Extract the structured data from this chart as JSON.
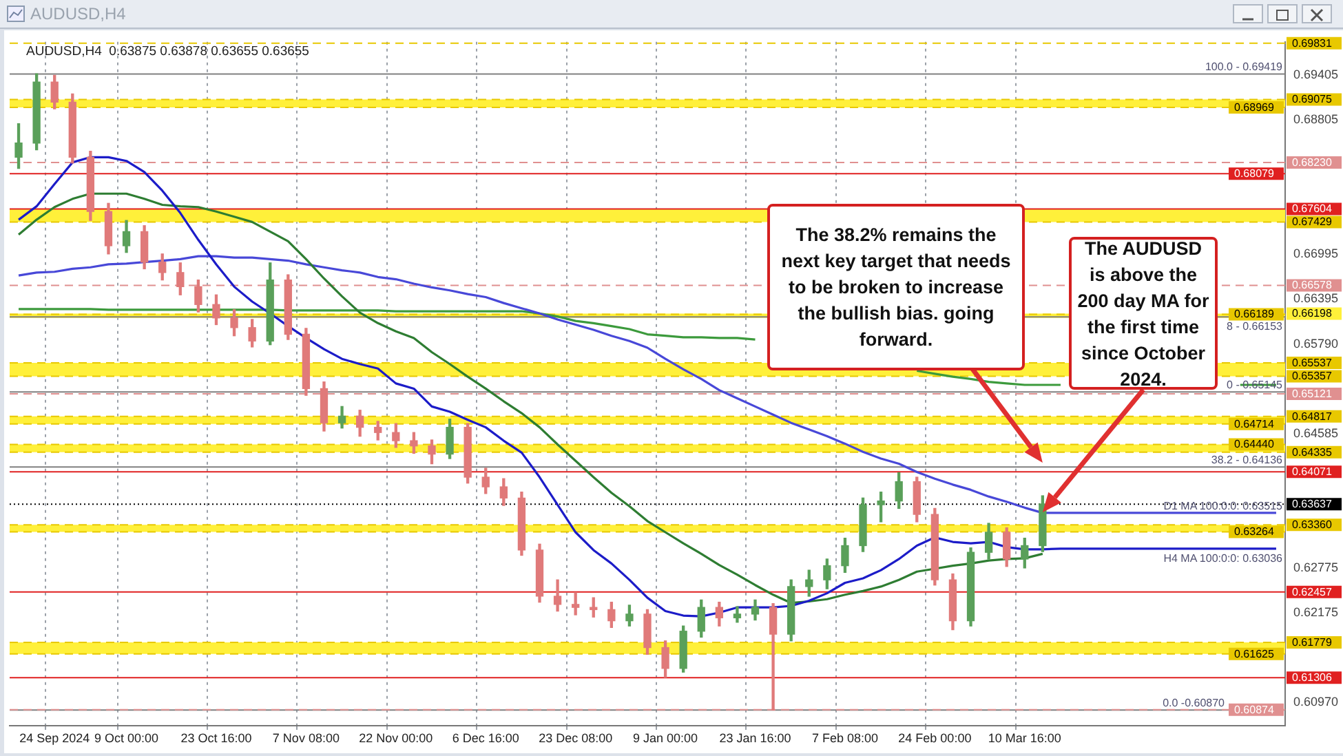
{
  "chart_data": {
    "type": "candlestick",
    "title": "AUDUSD,H4",
    "subtitle": "AUDUSD,H4  0.63875 0.63878 0.63655 0.63655",
    "categories": [
      null,
      null,
      "24 Sep 2024",
      null,
      null,
      null,
      "9 Oct 00:00",
      null,
      null,
      null,
      null,
      "23 Oct 16:00",
      null,
      null,
      null,
      null,
      "7 Nov 08:00",
      null,
      null,
      null,
      null,
      "22 Nov 00:00",
      null,
      null,
      null,
      null,
      "6 Dec 16:00",
      null,
      null,
      null,
      null,
      "23 Dec 08:00",
      null,
      null,
      null,
      null,
      "9 Jan 00:00",
      null,
      null,
      null,
      null,
      "23 Jan 16:00",
      null,
      null,
      null,
      null,
      "7 Feb 08:00",
      null,
      null,
      null,
      null,
      "24 Feb 00:00",
      null,
      null,
      null,
      null,
      "10 Mar 16:00",
      null,
      null,
      null,
      null,
      null,
      null,
      null,
      null,
      null,
      null,
      null,
      null,
      null,
      null
    ],
    "ohlc": [
      [
        0.683,
        0.6875,
        0.6815,
        0.6849
      ],
      [
        0.6849,
        0.6942,
        0.684,
        0.6931
      ],
      [
        0.6931,
        0.694,
        0.6895,
        0.6904
      ],
      [
        0.6904,
        0.6915,
        0.6822,
        0.683
      ],
      [
        0.683,
        0.6838,
        0.6745,
        0.6757
      ],
      [
        0.6757,
        0.6768,
        0.67,
        0.6711
      ],
      [
        0.6711,
        0.6745,
        0.6702,
        0.673
      ],
      [
        0.673,
        0.6738,
        0.668,
        0.6689
      ],
      [
        0.6689,
        0.67,
        0.6665,
        0.6675
      ],
      [
        0.6675,
        0.6688,
        0.6645,
        0.6656
      ],
      [
        0.6656,
        0.6665,
        0.6622,
        0.6632
      ],
      [
        0.6632,
        0.6645,
        0.6605,
        0.6614
      ],
      [
        0.6614,
        0.6625,
        0.659,
        0.6601
      ],
      [
        0.6601,
        0.6612,
        0.6575,
        0.6583
      ],
      [
        0.6583,
        0.6688,
        0.6578,
        0.6665
      ],
      [
        0.6665,
        0.6672,
        0.6585,
        0.6592
      ],
      [
        0.6592,
        0.66,
        0.651,
        0.6519
      ],
      [
        0.6519,
        0.6528,
        0.6462,
        0.6473
      ],
      [
        0.6473,
        0.6495,
        0.6466,
        0.6482
      ],
      [
        0.6482,
        0.649,
        0.6455,
        0.6467
      ],
      [
        0.6467,
        0.6475,
        0.645,
        0.646
      ],
      [
        0.646,
        0.6472,
        0.644,
        0.6449
      ],
      [
        0.6449,
        0.646,
        0.6432,
        0.6442
      ],
      [
        0.6442,
        0.645,
        0.6418,
        0.6431
      ],
      [
        0.6431,
        0.6478,
        0.6425,
        0.6467
      ],
      [
        0.6467,
        0.6472,
        0.6392,
        0.64
      ],
      [
        0.64,
        0.6412,
        0.6378,
        0.6387
      ],
      [
        0.6387,
        0.6398,
        0.6362,
        0.6372
      ],
      [
        0.6372,
        0.638,
        0.6295,
        0.6302
      ],
      [
        0.6302,
        0.631,
        0.6232,
        0.624
      ],
      [
        0.624,
        0.6262,
        0.622,
        0.6229
      ],
      [
        0.6229,
        0.6245,
        0.6215,
        0.6225
      ],
      [
        0.6225,
        0.6238,
        0.6212,
        0.6222
      ],
      [
        0.6222,
        0.6232,
        0.6198,
        0.6207
      ],
      [
        0.6207,
        0.6228,
        0.62,
        0.6216
      ],
      [
        0.6216,
        0.6222,
        0.6162,
        0.6171
      ],
      [
        0.6171,
        0.618,
        0.6131,
        0.6143
      ],
      [
        0.6143,
        0.62,
        0.6138,
        0.6193
      ],
      [
        0.6193,
        0.6235,
        0.6185,
        0.6225
      ],
      [
        0.6225,
        0.6232,
        0.62,
        0.6211
      ],
      [
        0.6211,
        0.6226,
        0.6205,
        0.6216
      ],
      [
        0.6216,
        0.6235,
        0.6208,
        0.6225
      ],
      [
        0.6225,
        0.623,
        0.6087,
        0.6189
      ],
      [
        0.6189,
        0.6262,
        0.618,
        0.6253
      ],
      [
        0.6253,
        0.6275,
        0.624,
        0.6262
      ],
      [
        0.6262,
        0.629,
        0.625,
        0.6281
      ],
      [
        0.6281,
        0.6318,
        0.6272,
        0.6308
      ],
      [
        0.6308,
        0.6372,
        0.63,
        0.6363
      ],
      [
        0.6363,
        0.638,
        0.634,
        0.6368
      ],
      [
        0.6368,
        0.6406,
        0.6358,
        0.6394
      ],
      [
        0.6394,
        0.64,
        0.634,
        0.635
      ],
      [
        0.635,
        0.6358,
        0.6255,
        0.6262
      ],
      [
        0.6262,
        0.627,
        0.6195,
        0.6207
      ],
      [
        0.6207,
        0.6305,
        0.62,
        0.6299
      ],
      [
        0.6299,
        0.6338,
        0.629,
        0.6326
      ],
      [
        0.6326,
        0.6332,
        0.628,
        0.629
      ],
      [
        0.629,
        0.6318,
        0.6278,
        0.6308
      ],
      [
        0.6308,
        0.6375,
        0.63,
        0.6364
      ],
      null,
      null,
      null,
      null,
      null,
      null,
      null,
      null,
      null,
      null,
      null,
      null,
      null
    ],
    "colors": [
      "#5aa05a",
      "#5aa05a",
      "#e07a7a",
      "#e07a7a",
      "#e07a7a",
      "#e07a7a",
      "#5aa05a",
      "#e07a7a",
      "#e07a7a",
      "#e07a7a",
      "#e07a7a",
      "#e07a7a",
      "#e07a7a",
      "#e07a7a",
      "#5aa05a",
      "#e07a7a",
      "#e07a7a",
      "#e07a7a",
      "#5aa05a",
      "#e07a7a",
      "#e07a7a",
      "#e07a7a",
      "#e07a7a",
      "#e07a7a",
      "#5aa05a",
      "#e07a7a",
      "#e07a7a",
      "#e07a7a",
      "#e07a7a",
      "#e07a7a",
      "#e07a7a",
      "#e07a7a",
      "#e07a7a",
      "#e07a7a",
      "#5aa05a",
      "#e07a7a",
      "#e07a7a",
      "#5aa05a",
      "#5aa05a",
      "#e07a7a",
      "#5aa05a",
      "#5aa05a",
      "#e07a7a",
      "#5aa05a",
      "#5aa05a",
      "#5aa05a",
      "#5aa05a",
      "#5aa05a",
      "#5aa05a",
      "#5aa05a",
      "#e07a7a",
      "#e07a7a",
      "#e07a7a",
      "#5aa05a",
      "#5aa05a",
      "#e07a7a",
      "#5aa05a",
      "#5aa05a",
      null,
      null,
      null,
      null,
      null,
      null,
      null,
      null,
      null,
      null,
      null,
      null,
      null
    ],
    "series": [
      {
        "type": "line",
        "color": "#1c1cc8",
        "values": [
          0.6746,
          0.6764,
          0.6794,
          0.6823,
          0.683,
          0.683,
          0.6825,
          0.681,
          0.6785,
          0.6755,
          0.6719,
          0.6686,
          0.6656,
          0.6636,
          0.662,
          0.6603,
          0.6587,
          0.6572,
          0.6559,
          0.6552,
          0.6546,
          0.6526,
          0.6519,
          0.6495,
          0.6488,
          0.6477,
          0.6467,
          0.6449,
          0.6433,
          0.64,
          0.6363,
          0.6326,
          0.6302,
          0.6284,
          0.6262,
          0.6238,
          0.622,
          0.6214,
          0.6213,
          0.6218,
          0.6225,
          0.6225,
          0.6225,
          0.6227,
          0.6234,
          0.6244,
          0.6258,
          0.6264,
          0.6275,
          0.629,
          0.6308,
          0.6319,
          0.6313,
          0.6311,
          0.6313,
          0.6306,
          0.6303,
          0.6303,
          0.6304,
          0.6304,
          0.6304,
          0.6304,
          0.6304,
          0.6304,
          0.6304,
          0.6304,
          0.6304,
          0.6304,
          0.6304,
          0.6304,
          0.6304
        ]
      },
      {
        "type": "line",
        "color": "#2e7d32",
        "values": [
          0.6726,
          0.6746,
          0.6763,
          0.6774,
          0.6781,
          0.6781,
          0.6781,
          0.6774,
          0.6766,
          0.6764,
          0.6763,
          0.6757,
          0.675,
          0.6743,
          0.673,
          0.6717,
          0.6693,
          0.6667,
          0.6643,
          0.6621,
          0.6607,
          0.6596,
          0.6587,
          0.6568,
          0.6552,
          0.6535,
          0.6519,
          0.6502,
          0.6486,
          0.6467,
          0.6444,
          0.6422,
          0.64,
          0.6379,
          0.6361,
          0.6341,
          0.6326,
          0.6311,
          0.6297,
          0.6282,
          0.6269,
          0.6255,
          0.6242,
          0.6231,
          0.6233,
          0.6236,
          0.6242,
          0.6247,
          0.6253,
          0.6262,
          0.6273,
          0.6277,
          0.6281,
          0.6284,
          0.6288,
          0.629,
          0.6291,
          0.6297,
          null,
          null,
          null,
          null,
          null,
          null,
          null,
          null,
          null,
          null,
          null,
          null,
          null
        ]
      },
      {
        "type": "line",
        "color": "#4848d8",
        "values": [
          0.6671,
          0.6675,
          0.6676,
          0.668,
          0.6682,
          0.6686,
          0.6687,
          0.6689,
          0.6691,
          0.6693,
          0.6697,
          0.6697,
          0.6695,
          0.6695,
          0.6693,
          0.6691,
          0.6686,
          0.6682,
          0.6678,
          0.6675,
          0.6669,
          0.6666,
          0.666,
          0.6655,
          0.6651,
          0.6646,
          0.6642,
          0.6634,
          0.6627,
          0.662,
          0.6612,
          0.6605,
          0.6598,
          0.659,
          0.6583,
          0.6574,
          0.6559,
          0.6545,
          0.6532,
          0.6517,
          0.6506,
          0.6495,
          0.6484,
          0.6473,
          0.6464,
          0.6455,
          0.6445,
          0.6434,
          0.6425,
          0.6418,
          0.6407,
          0.6398,
          0.639,
          0.6383,
          0.6374,
          0.6367,
          0.6359,
          0.6352,
          0.6352,
          0.6352,
          0.6352,
          0.6352,
          0.6352,
          0.6352,
          0.6352,
          0.6352,
          0.6352,
          0.6352,
          0.6352,
          0.6352,
          0.6352
        ]
      },
      {
        "type": "line",
        "color": "#3c9a3c",
        "values": [
          0.6626,
          0.6626,
          0.6626,
          0.6626,
          0.6626,
          0.6625,
          0.6625,
          0.6625,
          0.6625,
          0.6625,
          0.6625,
          0.6625,
          0.6625,
          0.6625,
          0.6625,
          0.6624,
          0.6624,
          0.6624,
          0.6624,
          0.6624,
          0.6624,
          0.6623,
          0.6623,
          0.6623,
          0.6623,
          0.6623,
          0.6623,
          0.6623,
          0.6623,
          0.662,
          0.6616,
          0.661,
          0.6607,
          0.6603,
          0.6599,
          0.6592,
          0.659,
          0.6588,
          0.6588,
          0.6587,
          0.6587,
          0.6585,
          null,
          null,
          null,
          null,
          null,
          null,
          null,
          null,
          0.6543,
          0.6539,
          0.6535,
          0.6532,
          0.6528,
          0.6526,
          0.6524,
          0.6524,
          0.6524,
          null,
          null,
          null,
          null,
          null,
          null,
          null,
          null,
          null,
          0.6524,
          0.6524,
          0.6524
        ]
      }
    ],
    "ylim": [
      0.6066,
      0.6985
    ],
    "yticks": [
      0.69405,
      0.68805,
      0.66995,
      0.66395,
      {
        "value": 0.6579,
        "label": "0.65790"
      },
      0.64585,
      0.62775,
      0.62175,
      {
        "value": 0.6097,
        "label": "0.60970"
      }
    ],
    "bands": [
      {
        "axis": "y",
        "from": 0.68969,
        "to": 0.69075,
        "color": "#fff03a"
      },
      {
        "axis": "y",
        "from": 0.67429,
        "to": 0.67604,
        "color": "#fff03a"
      },
      {
        "axis": "y",
        "from": 0.6614,
        "to": 0.66198,
        "color": "#fff03a",
        "label": "0.66198"
      },
      {
        "axis": "y",
        "from": 0.65357,
        "to": 0.65537,
        "color": "#fff03a"
      },
      {
        "axis": "y",
        "from": 0.64714,
        "to": 0.64817,
        "color": "#fff03a"
      },
      {
        "axis": "y",
        "from": 0.64335,
        "to": 0.6444,
        "color": "#fff03a"
      },
      {
        "axis": "y",
        "from": 0.63264,
        "to": 0.6336,
        "color": "#fff03a"
      },
      {
        "axis": "y",
        "from": 0.61625,
        "to": 0.61779,
        "color": "#fff03a"
      }
    ],
    "ref_lines": [
      {
        "axis": "y",
        "value": 0.69419,
        "color": "#808080",
        "line_style": "solid"
      },
      {
        "axis": "y",
        "value": 0.66153,
        "color": "#808080",
        "line_style": "solid"
      },
      {
        "axis": "y",
        "value": 0.65145,
        "color": "#808080",
        "line_style": "solid"
      },
      {
        "axis": "y",
        "value": 0.64136,
        "color": "#808080",
        "line_style": "solid"
      },
      {
        "axis": "y",
        "value": 0.6087,
        "color": "#808080",
        "line_style": "solid"
      },
      {
        "axis": "y",
        "value": 0.69831,
        "label": "0.69831",
        "color": "#e8c800",
        "line_style": "dashed"
      },
      {
        "axis": "y",
        "value": 0.69075,
        "label": "0.69075",
        "color": "#e8c800",
        "line_style": "dashed"
      },
      {
        "axis": "y",
        "value": 0.68969,
        "label": "0.68969",
        "color": "#e8c800",
        "line_style": "dashed"
      },
      {
        "axis": "y",
        "value": 0.6823,
        "label": "0.68230",
        "color": "#e09090",
        "line_style": "dashed"
      },
      {
        "axis": "y",
        "value": 0.68079,
        "label": "0.68079",
        "color": "#e02020",
        "line_style": "solid"
      },
      {
        "axis": "y",
        "value": 0.67604,
        "label": "0.67604",
        "color": "#e02020",
        "line_style": "solid"
      },
      {
        "axis": "y",
        "value": 0.67429,
        "label": "0.67429",
        "color": "#e8c800",
        "line_style": "dashed"
      },
      {
        "axis": "y",
        "value": 0.66578,
        "label": "0.66578",
        "color": "#e09090",
        "line_style": "dashed"
      },
      {
        "axis": "y",
        "value": 0.66189,
        "label": "0.66189",
        "color": "#e8c800",
        "line_style": "dashed"
      },
      {
        "axis": "y",
        "value": 0.65537,
        "label": "0.65537",
        "color": "#e8c800",
        "line_style": "dashed"
      },
      {
        "axis": "y",
        "value": 0.65357,
        "label": "0.65357",
        "color": "#e8c800",
        "line_style": "dashed"
      },
      {
        "axis": "y",
        "value": 0.65121,
        "label": "0.65121",
        "color": "#e09090",
        "line_style": "dashed"
      },
      {
        "axis": "y",
        "value": 0.64817,
        "label": "0.64817",
        "color": "#e8c800",
        "line_style": "dashed"
      },
      {
        "axis": "y",
        "value": 0.64714,
        "label": "0.64714",
        "color": "#e8c800",
        "line_style": "dashed"
      },
      {
        "axis": "y",
        "value": 0.6444,
        "label": "0.64440",
        "color": "#e8c800",
        "line_style": "dashed"
      },
      {
        "axis": "y",
        "value": 0.64335,
        "label": "0.64335",
        "color": "#e8c800",
        "line_style": "dashed"
      },
      {
        "axis": "y",
        "value": 0.64071,
        "label": "0.64071",
        "color": "#e02020",
        "line_style": "solid"
      },
      {
        "axis": "y",
        "value": 0.63637,
        "label": "0.63637",
        "color": "#000000",
        "line_style": "dotted"
      },
      {
        "axis": "y",
        "value": 0.6336,
        "label": "0.63360",
        "color": "#e8c800",
        "line_style": "dashed"
      },
      {
        "axis": "y",
        "value": 0.63264,
        "label": "0.63264",
        "color": "#e8c800",
        "line_style": "dashed"
      },
      {
        "axis": "y",
        "value": 0.62457,
        "label": "0.62457",
        "color": "#e02020",
        "line_style": "solid"
      },
      {
        "axis": "y",
        "value": 0.61779,
        "label": "0.61779",
        "color": "#e8c800",
        "line_style": "dashed"
      },
      {
        "axis": "y",
        "value": 0.61625,
        "label": "0.61625",
        "color": "#e8c800",
        "line_style": "dashed"
      },
      {
        "axis": "y",
        "value": 0.61306,
        "label": "0.61306",
        "color": "#e02020",
        "line_style": "solid"
      },
      {
        "axis": "y",
        "value": 0.60874,
        "label": "0.60874",
        "color": "#e09090",
        "line_style": "dashed"
      }
    ],
    "annotations": [
      "The 38.2% remains the next key target that needs to be broken to increase the bullish bias. going forward.",
      "The AUDUSD is above the 200 day MA for the first time since October 2024.",
      {
        "text": "100.0 - 0.69419",
        "y": 0.69419
      },
      {
        "text": "8 - 0.66153",
        "y": 0.66153
      },
      {
        "text": "0 - 0.65145",
        "y": 0.65145
      },
      {
        "text": "38.2 - 0.64136",
        "y": 0.64136
      },
      {
        "text": "0.0 -0.60870",
        "y": 0.6087
      },
      {
        "text": "D1 MA 100:0:0: 0.63515",
        "y": 0.63515
      },
      {
        "text": "H4 MA 100:0:0: 0.63036",
        "y": 0.63036
      }
    ],
    "grid": "x",
    "marker": "none",
    "legend": false
  }
}
